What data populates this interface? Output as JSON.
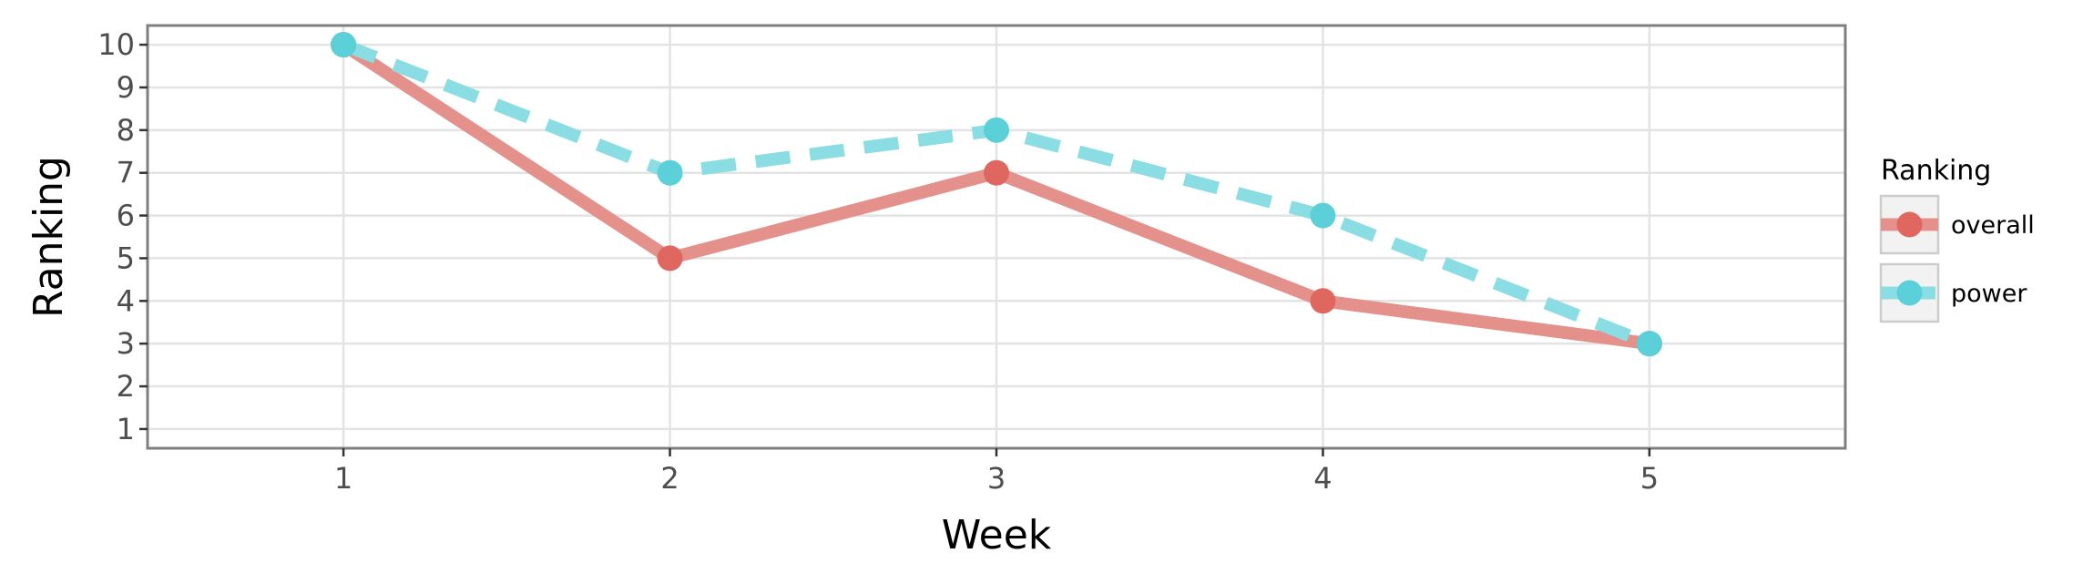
{
  "chart_data": {
    "type": "line",
    "xlabel": "Week",
    "ylabel": "Ranking",
    "x": [
      1,
      2,
      3,
      4,
      5
    ],
    "xlim": [
      0.4,
      5.6
    ],
    "ylim": [
      10.45,
      0.55
    ],
    "y_reversed": true,
    "x_ticks": [
      1,
      2,
      3,
      4,
      5
    ],
    "y_ticks": [
      1,
      2,
      3,
      4,
      5,
      6,
      7,
      8,
      9,
      10
    ],
    "grid": true,
    "legend": {
      "title": "Ranking",
      "placement": "right"
    },
    "series": [
      {
        "name": "overall",
        "values": [
          10,
          5,
          7,
          4,
          3
        ],
        "color": "#e06660",
        "line_color": "#e4918c",
        "line_style": "solid"
      },
      {
        "name": "power",
        "values": [
          10,
          7,
          8,
          6,
          3
        ],
        "color": "#5bd0d8",
        "line_color": "#8adde2",
        "line_style": "dashed"
      }
    ]
  }
}
